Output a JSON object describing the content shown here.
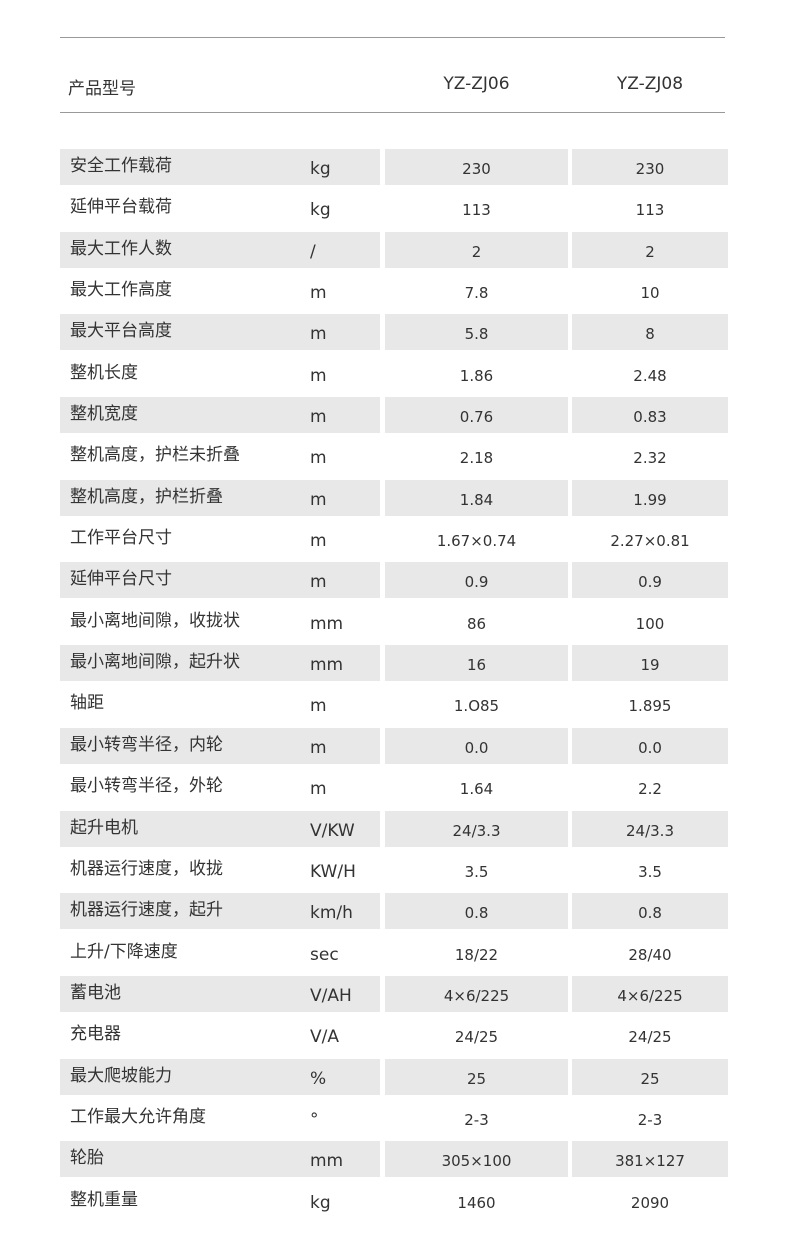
{
  "header": {
    "label": "产品型号",
    "models": [
      "YZ-ZJ06",
      "YZ-ZJ08"
    ]
  },
  "colors": {
    "row_stripe": "#e8e8e8",
    "text": "#333333"
  },
  "rows": [
    {
      "label": "安全工作载荷",
      "unit": "kg",
      "v1": "230",
      "v2": "230"
    },
    {
      "label": "延伸平台载荷",
      "unit": "kg",
      "v1": "113",
      "v2": "113"
    },
    {
      "label": "最大工作人数",
      "unit": "/",
      "v1": "2",
      "v2": "2"
    },
    {
      "label": "最大工作高度",
      "unit": "m",
      "v1": "7.8",
      "v2": "10"
    },
    {
      "label": "最大平台高度",
      "unit": "m",
      "v1": "5.8",
      "v2": "8"
    },
    {
      "label": "整机长度",
      "unit": "m",
      "v1": "1.86",
      "v2": "2.48"
    },
    {
      "label": "整机宽度",
      "unit": "m",
      "v1": "0.76",
      "v2": "0.83"
    },
    {
      "label": "整机高度，护栏未折叠",
      "unit": "m",
      "v1": "2.18",
      "v2": "2.32"
    },
    {
      "label": "整机高度，护栏折叠",
      "unit": "m",
      "v1": "1.84",
      "v2": "1.99"
    },
    {
      "label": "工作平台尺寸",
      "unit": "m",
      "v1": "1.67×0.74",
      "v2": "2.27×0.81"
    },
    {
      "label": "延伸平台尺寸",
      "unit": "m",
      "v1": "0.9",
      "v2": "0.9"
    },
    {
      "label": "最小离地间隙，收拢状",
      "unit": "mm",
      "v1": "86",
      "v2": "100"
    },
    {
      "label": "最小离地间隙，起升状",
      "unit": "mm",
      "v1": "16",
      "v2": "19"
    },
    {
      "label": "轴距",
      "unit": "m",
      "v1": "1.O85",
      "v2": "1.895"
    },
    {
      "label": "最小转弯半径，内轮",
      "unit": "m",
      "v1": "0.0",
      "v2": "0.0"
    },
    {
      "label": "最小转弯半径，外轮",
      "unit": "m",
      "v1": "1.64",
      "v2": "2.2"
    },
    {
      "label": "起升电机",
      "unit": "V/KW",
      "v1": "24/3.3",
      "v2": "24/3.3"
    },
    {
      "label": "机器运行速度，收拢",
      "unit": "KW/H",
      "v1": "3.5",
      "v2": "3.5"
    },
    {
      "label": "机器运行速度，起升",
      "unit": "km/h",
      "v1": "0.8",
      "v2": "0.8"
    },
    {
      "label": "上升/下降速度",
      "unit": "sec",
      "v1": "18/22",
      "v2": "28/40"
    },
    {
      "label": "蓄电池",
      "unit": "V/AH",
      "v1": "4×6/225",
      "v2": "4×6/225"
    },
    {
      "label": "充电器",
      "unit": "V/A",
      "v1": "24/25",
      "v2": "24/25"
    },
    {
      "label": "最大爬坡能力",
      "unit": "%",
      "v1": "25",
      "v2": "25"
    },
    {
      "label": "工作最大允许角度",
      "unit": "°",
      "v1": "2-3",
      "v2": "2-3"
    },
    {
      "label": "轮胎",
      "unit": "mm",
      "v1": "305×100",
      "v2": "381×127"
    },
    {
      "label": "整机重量",
      "unit": "kg",
      "v1": "1460",
      "v2": "2090"
    }
  ]
}
